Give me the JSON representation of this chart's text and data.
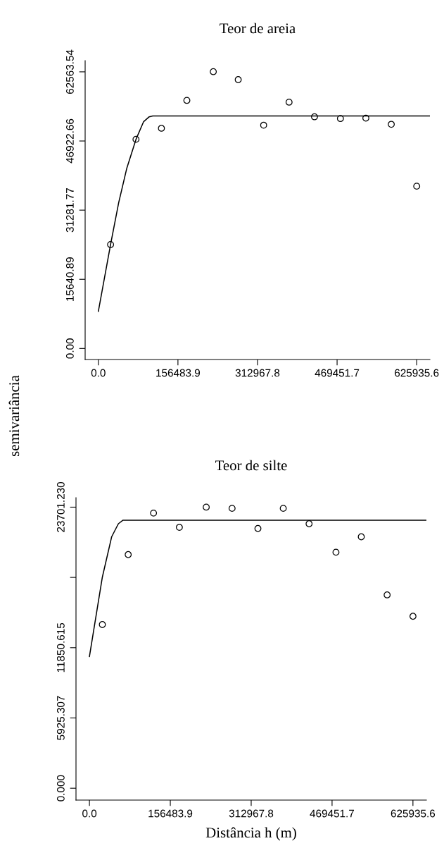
{
  "chart_data": [
    {
      "type": "scatter",
      "title": "Teor de areia",
      "ylabel": "semivariância",
      "grid": false,
      "xlim": [
        -26000,
        652000
      ],
      "ylim": [
        -2500,
        65100
      ],
      "xticks": [
        {
          "value": 0,
          "label": "0.0"
        },
        156483.9,
        312967.8,
        469451.7,
        625935.6
      ],
      "yticks": [
        {
          "value": 0,
          "label": "0.00"
        },
        15640.89,
        31281.77,
        46922.66,
        62563.54
      ],
      "series": [
        {
          "marker": "circle",
          "color": "#000000",
          "x": [
            24000,
            74000,
            124000,
            174000,
            226000,
            275000,
            325000,
            375000,
            425000,
            476000,
            526000,
            576000,
            626000
          ],
          "values": [
            23500,
            47300,
            49800,
            56100,
            62600,
            60800,
            50500,
            55700,
            52400,
            52000,
            52100,
            50700,
            36700
          ]
        },
        {
          "type": "line",
          "marker": "none",
          "color": "#000000",
          "line_style": "solid",
          "x": [
            0,
            24000,
            40000,
            56000,
            74000,
            89000,
            100000,
            107000,
            652000
          ],
          "values": [
            8400,
            23500,
            33000,
            40800,
            47300,
            51300,
            52400,
            52600,
            52600
          ]
        }
      ]
    },
    {
      "type": "scatter",
      "title": "Teor de silte",
      "xlabel": "Distância h (m)",
      "grid": false,
      "xlim": [
        -26000,
        652000
      ],
      "ylim": [
        -1000,
        24500
      ],
      "xticks": [
        {
          "value": 0,
          "label": "0.0"
        },
        156483.9,
        312967.8,
        469451.7,
        625935.6
      ],
      "yticks": [
        {
          "value": 0,
          "label": "0.000"
        },
        5925.307,
        11850.615,
        {
          "value": 17775.92,
          "label": null
        },
        {
          "value": 23701.23,
          "label": "23701.230"
        }
      ],
      "series": [
        {
          "marker": "circle",
          "color": "#000000",
          "x": [
            25000,
            75000,
            124000,
            174000,
            226000,
            276000,
            326000,
            375000,
            425000,
            477000,
            526000,
            576000,
            626000
          ],
          "values": [
            13800,
            19700,
            23200,
            22000,
            23700,
            23600,
            21900,
            23600,
            22300,
            19900,
            21200,
            16300,
            14500
          ]
        },
        {
          "type": "line",
          "marker": "none",
          "color": "#000000",
          "line_style": "solid",
          "x": [
            0,
            25000,
            43000,
            56000,
            65000,
            651000
          ],
          "values": [
            11100,
            17800,
            21200,
            22300,
            22600,
            22600
          ]
        }
      ]
    }
  ]
}
